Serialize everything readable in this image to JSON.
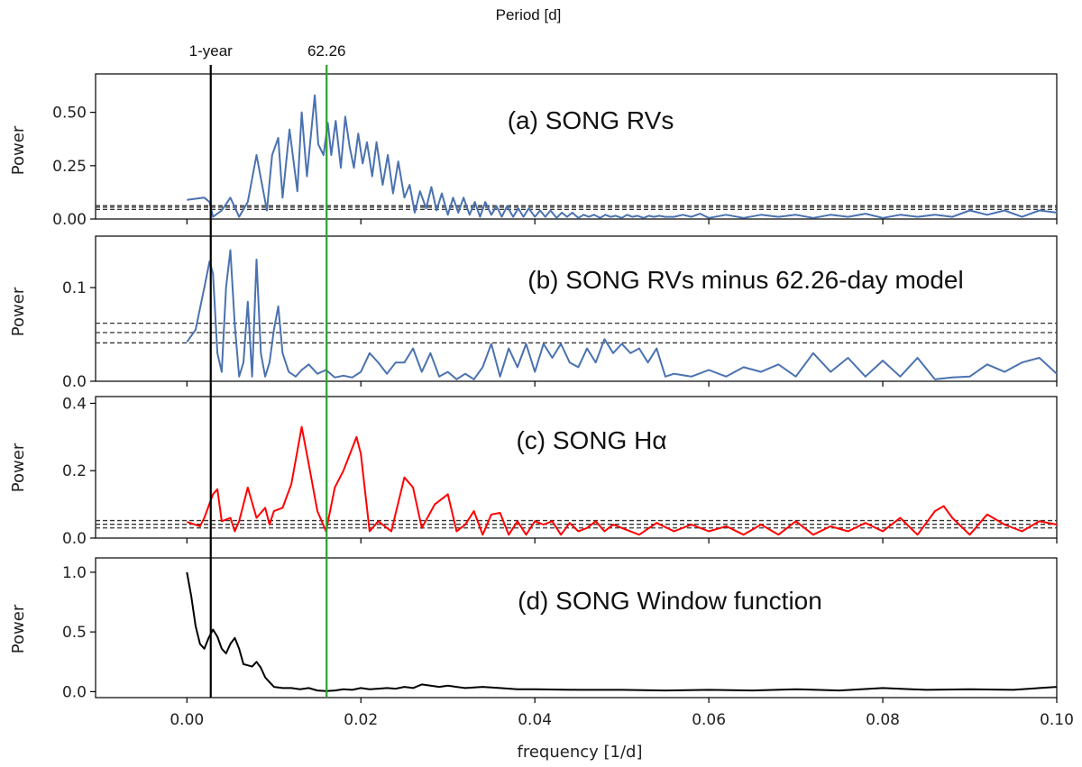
{
  "chart_data": {
    "type": "line",
    "top_axis_label": "Period [d]",
    "xlabel": "frequency [1/d]",
    "xlim": [
      -0.0105,
      0.1
    ],
    "x_ticks": [
      0.0,
      0.02,
      0.04,
      0.06,
      0.08,
      0.1
    ],
    "x_tick_labels": [
      "0.00",
      "0.02",
      "0.04",
      "0.06",
      "0.08",
      "0.10"
    ],
    "vertical_markers": [
      {
        "label": "1-year",
        "x": 0.00274,
        "color": "#000000"
      },
      {
        "label": "62.26",
        "x": 0.01606,
        "color": "#2ca02c"
      }
    ],
    "panels": [
      {
        "id": "a",
        "title": "(a) SONG RVs",
        "ylabel": "Power",
        "ylim": [
          0,
          0.68
        ],
        "y_ticks": [
          0,
          0.25,
          0.5
        ],
        "y_tick_labels": [
          "0.00",
          "0.25",
          "0.50"
        ],
        "thresholds": [
          0.045,
          0.055,
          0.062
        ],
        "series_color": "#4a72b0",
        "x": [
          0.0,
          0.002,
          0.0026,
          0.003,
          0.004,
          0.005,
          0.006,
          0.007,
          0.008,
          0.0092,
          0.0098,
          0.0105,
          0.011,
          0.0118,
          0.0127,
          0.0132,
          0.0138,
          0.0147,
          0.0151,
          0.0157,
          0.0162,
          0.0166,
          0.0171,
          0.0177,
          0.0182,
          0.0187,
          0.0192,
          0.0197,
          0.0202,
          0.0207,
          0.0213,
          0.0218,
          0.0225,
          0.0231,
          0.0237,
          0.0243,
          0.025,
          0.0256,
          0.0262,
          0.0268,
          0.0275,
          0.0281,
          0.0287,
          0.0293,
          0.03,
          0.0306,
          0.0312,
          0.0318,
          0.0325,
          0.0331,
          0.0337,
          0.0343,
          0.035,
          0.0356,
          0.0362,
          0.0368,
          0.0375,
          0.0381,
          0.0387,
          0.0393,
          0.04,
          0.0406,
          0.0412,
          0.0418,
          0.0425,
          0.0431,
          0.0437,
          0.0443,
          0.045,
          0.0456,
          0.0462,
          0.0468,
          0.0475,
          0.0481,
          0.0487,
          0.0493,
          0.05,
          0.0506,
          0.0512,
          0.0518,
          0.0525,
          0.0531,
          0.0537,
          0.0543,
          0.055,
          0.056,
          0.057,
          0.058,
          0.059,
          0.06,
          0.062,
          0.064,
          0.066,
          0.068,
          0.07,
          0.072,
          0.074,
          0.076,
          0.078,
          0.08,
          0.082,
          0.084,
          0.086,
          0.088,
          0.09,
          0.092,
          0.094,
          0.096,
          0.098,
          0.1
        ],
        "y": [
          0.09,
          0.1,
          0.08,
          0.01,
          0.04,
          0.1,
          0.01,
          0.08,
          0.3,
          0.04,
          0.3,
          0.38,
          0.1,
          0.42,
          0.13,
          0.5,
          0.2,
          0.58,
          0.35,
          0.3,
          0.45,
          0.3,
          0.46,
          0.24,
          0.48,
          0.34,
          0.24,
          0.4,
          0.26,
          0.36,
          0.2,
          0.36,
          0.16,
          0.3,
          0.12,
          0.27,
          0.1,
          0.16,
          0.03,
          0.13,
          0.05,
          0.15,
          0.04,
          0.12,
          0.02,
          0.1,
          0.03,
          0.1,
          0.02,
          0.08,
          0.01,
          0.08,
          0.02,
          0.06,
          0.01,
          0.06,
          0.01,
          0.05,
          0.01,
          0.05,
          0.01,
          0.04,
          0.01,
          0.04,
          0.005,
          0.03,
          0.01,
          0.03,
          0.005,
          0.02,
          0.01,
          0.02,
          0.005,
          0.02,
          0.01,
          0.015,
          0.005,
          0.02,
          0.01,
          0.015,
          0.005,
          0.015,
          0.01,
          0.015,
          0.01,
          0.01,
          0.02,
          0.01,
          0.025,
          0.005,
          0.02,
          0.005,
          0.02,
          0.01,
          0.02,
          0.005,
          0.02,
          0.01,
          0.025,
          0.005,
          0.02,
          0.01,
          0.02,
          0.01,
          0.04,
          0.02,
          0.04,
          0.01,
          0.04,
          0.03
        ]
      },
      {
        "id": "b",
        "title": "(b) SONG RVs minus 62.26-day model",
        "ylabel": "Power",
        "ylim": [
          0,
          0.155
        ],
        "y_ticks": [
          0,
          0.1
        ],
        "y_tick_labels": [
          "0.0",
          "0.1"
        ],
        "thresholds": [
          0.041,
          0.052,
          0.062
        ],
        "series_color": "#4a72b0",
        "x": [
          0.0,
          0.001,
          0.002,
          0.0026,
          0.003,
          0.0035,
          0.004,
          0.0045,
          0.005,
          0.0055,
          0.006,
          0.0065,
          0.007,
          0.0075,
          0.008,
          0.0085,
          0.009,
          0.0095,
          0.01,
          0.0105,
          0.011,
          0.0117,
          0.0125,
          0.0132,
          0.014,
          0.015,
          0.016,
          0.017,
          0.018,
          0.019,
          0.02,
          0.021,
          0.022,
          0.023,
          0.024,
          0.025,
          0.026,
          0.027,
          0.028,
          0.029,
          0.03,
          0.031,
          0.032,
          0.033,
          0.034,
          0.035,
          0.036,
          0.037,
          0.038,
          0.039,
          0.04,
          0.041,
          0.042,
          0.043,
          0.044,
          0.045,
          0.046,
          0.047,
          0.048,
          0.049,
          0.05,
          0.051,
          0.052,
          0.053,
          0.054,
          0.055,
          0.056,
          0.058,
          0.06,
          0.062,
          0.064,
          0.066,
          0.068,
          0.07,
          0.072,
          0.074,
          0.076,
          0.078,
          0.08,
          0.082,
          0.084,
          0.086,
          0.088,
          0.09,
          0.092,
          0.094,
          0.096,
          0.098,
          0.1
        ],
        "y": [
          0.042,
          0.055,
          0.1,
          0.128,
          0.115,
          0.03,
          0.01,
          0.1,
          0.14,
          0.06,
          0.005,
          0.02,
          0.085,
          0.005,
          0.13,
          0.03,
          0.005,
          0.02,
          0.055,
          0.08,
          0.03,
          0.01,
          0.005,
          0.012,
          0.018,
          0.008,
          0.012,
          0.004,
          0.006,
          0.004,
          0.01,
          0.03,
          0.02,
          0.008,
          0.02,
          0.02,
          0.035,
          0.01,
          0.03,
          0.005,
          0.01,
          0.002,
          0.008,
          0.002,
          0.015,
          0.04,
          0.005,
          0.035,
          0.015,
          0.04,
          0.01,
          0.04,
          0.025,
          0.04,
          0.02,
          0.015,
          0.035,
          0.02,
          0.045,
          0.03,
          0.04,
          0.03,
          0.035,
          0.02,
          0.035,
          0.005,
          0.008,
          0.005,
          0.012,
          0.005,
          0.015,
          0.01,
          0.018,
          0.005,
          0.03,
          0.01,
          0.025,
          0.005,
          0.022,
          0.005,
          0.025,
          0.002,
          0.004,
          0.005,
          0.018,
          0.01,
          0.02,
          0.025,
          0.008
        ],
        "yrange_note": ""
      },
      {
        "id": "c",
        "title": "(c) SONG Hα",
        "ylabel": "Power",
        "ylim": [
          0,
          0.42
        ],
        "y_ticks": [
          0,
          0.2,
          0.4
        ],
        "y_tick_labels": [
          "0.0",
          "0.2",
          "0.4"
        ],
        "thresholds": [
          0.03,
          0.041,
          0.052
        ],
        "series_color": "#ff0000",
        "x": [
          0.0,
          0.0015,
          0.002,
          0.003,
          0.0035,
          0.004,
          0.005,
          0.0055,
          0.006,
          0.007,
          0.008,
          0.009,
          0.0095,
          0.01,
          0.011,
          0.012,
          0.0132,
          0.014,
          0.015,
          0.016,
          0.017,
          0.018,
          0.0195,
          0.02,
          0.021,
          0.022,
          0.0235,
          0.025,
          0.026,
          0.027,
          0.0285,
          0.03,
          0.031,
          0.032,
          0.033,
          0.034,
          0.035,
          0.036,
          0.037,
          0.038,
          0.039,
          0.04,
          0.041,
          0.042,
          0.043,
          0.044,
          0.045,
          0.046,
          0.047,
          0.048,
          0.049,
          0.05,
          0.052,
          0.054,
          0.056,
          0.058,
          0.06,
          0.062,
          0.064,
          0.066,
          0.068,
          0.07,
          0.072,
          0.074,
          0.076,
          0.078,
          0.08,
          0.082,
          0.084,
          0.086,
          0.087,
          0.088,
          0.09,
          0.092,
          0.094,
          0.096,
          0.098,
          0.1
        ],
        "y": [
          0.048,
          0.035,
          0.06,
          0.13,
          0.145,
          0.05,
          0.06,
          0.02,
          0.05,
          0.15,
          0.06,
          0.09,
          0.04,
          0.08,
          0.09,
          0.16,
          0.33,
          0.22,
          0.08,
          0.02,
          0.15,
          0.2,
          0.3,
          0.25,
          0.02,
          0.05,
          0.02,
          0.18,
          0.15,
          0.03,
          0.1,
          0.13,
          0.02,
          0.04,
          0.08,
          0.01,
          0.07,
          0.075,
          0.01,
          0.05,
          0.01,
          0.05,
          0.04,
          0.05,
          0.01,
          0.045,
          0.02,
          0.03,
          0.05,
          0.02,
          0.04,
          0.03,
          0.01,
          0.045,
          0.02,
          0.04,
          0.02,
          0.035,
          0.01,
          0.04,
          0.01,
          0.05,
          0.01,
          0.035,
          0.02,
          0.045,
          0.02,
          0.06,
          0.01,
          0.08,
          0.095,
          0.06,
          0.01,
          0.07,
          0.04,
          0.02,
          0.05,
          0.04
        ]
      },
      {
        "id": "d",
        "title": "(d) SONG Window function",
        "ylabel": "Power",
        "ylim": [
          -0.05,
          1.12
        ],
        "y_ticks": [
          0,
          0.5,
          1.0
        ],
        "y_tick_labels": [
          "0.0",
          "0.5",
          "1.0"
        ],
        "thresholds": [],
        "series_color": "#000000",
        "x": [
          0.0,
          0.0005,
          0.001,
          0.0015,
          0.002,
          0.0025,
          0.003,
          0.0035,
          0.004,
          0.0045,
          0.005,
          0.0055,
          0.006,
          0.0065,
          0.007,
          0.0075,
          0.008,
          0.0085,
          0.009,
          0.0095,
          0.01,
          0.011,
          0.012,
          0.013,
          0.014,
          0.015,
          0.016,
          0.017,
          0.018,
          0.019,
          0.02,
          0.021,
          0.022,
          0.023,
          0.024,
          0.025,
          0.026,
          0.027,
          0.028,
          0.029,
          0.03,
          0.032,
          0.034,
          0.036,
          0.038,
          0.04,
          0.045,
          0.05,
          0.055,
          0.06,
          0.065,
          0.07,
          0.075,
          0.08,
          0.085,
          0.09,
          0.095,
          0.098,
          0.1
        ],
        "y": [
          1.0,
          0.8,
          0.55,
          0.4,
          0.36,
          0.45,
          0.52,
          0.46,
          0.36,
          0.32,
          0.4,
          0.45,
          0.36,
          0.23,
          0.22,
          0.21,
          0.25,
          0.2,
          0.12,
          0.08,
          0.04,
          0.03,
          0.03,
          0.02,
          0.03,
          0.01,
          0.005,
          0.01,
          0.02,
          0.015,
          0.03,
          0.02,
          0.025,
          0.03,
          0.025,
          0.04,
          0.03,
          0.06,
          0.05,
          0.04,
          0.05,
          0.03,
          0.04,
          0.03,
          0.02,
          0.02,
          0.015,
          0.015,
          0.01,
          0.015,
          0.01,
          0.02,
          0.01,
          0.03,
          0.015,
          0.02,
          0.015,
          0.03,
          0.04
        ]
      }
    ]
  }
}
